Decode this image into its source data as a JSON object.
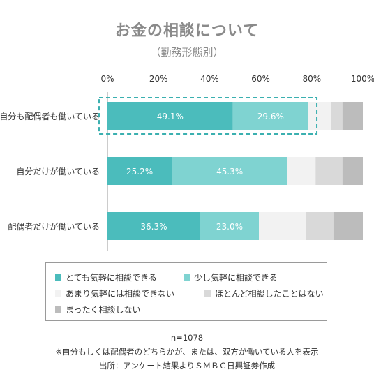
{
  "chart_data": {
    "type": "bar",
    "orientation": "horizontal",
    "stacked": true,
    "title": "お金の相談について",
    "subtitle": "（勤務形態別）",
    "x_ticks": [
      "0%",
      "20%",
      "40%",
      "60%",
      "80%",
      "100%"
    ],
    "xlim": [
      0,
      100
    ],
    "categories": [
      "自分も配偶者も働いている",
      "自分だけが働いている",
      "配偶者だけが働いている"
    ],
    "series": [
      {
        "name": "とても気軽に相談できる",
        "color": "#4bbcbc",
        "values": [
          49.1,
          25.2,
          36.3
        ],
        "labels": [
          "49.1%",
          "25.2%",
          "36.3%"
        ]
      },
      {
        "name": "少し気軽に相談できる",
        "color": "#7fd3d1",
        "values": [
          29.6,
          45.3,
          23.0
        ],
        "labels": [
          "29.6%",
          "45.3%",
          "23.0%"
        ]
      },
      {
        "name": "あまり気軽には相談できない",
        "color": "#f2f2f2",
        "values": [
          9.0,
          11.0,
          18.5
        ]
      },
      {
        "name": "ほとんど相談したことはない",
        "color": "#d9d9d9",
        "values": [
          4.3,
          10.5,
          10.7
        ]
      },
      {
        "name": "まったく相談しない",
        "color": "#bcbcbc",
        "values": [
          8.0,
          8.0,
          11.5
        ]
      }
    ],
    "highlight_category": "自分も配偶者も働いている",
    "legend_position": "bottom"
  },
  "notes": {
    "n": "n=1078",
    "footnote": "※自分もしくは配偶者のどちらかが、または、双方が働いている人を表示",
    "source": "出所：アンケート結果よりＳＭＢＣ日興証券作成"
  },
  "colors": {
    "accent": "#4bbcbc",
    "highlight_border": "#3bb0b0"
  }
}
